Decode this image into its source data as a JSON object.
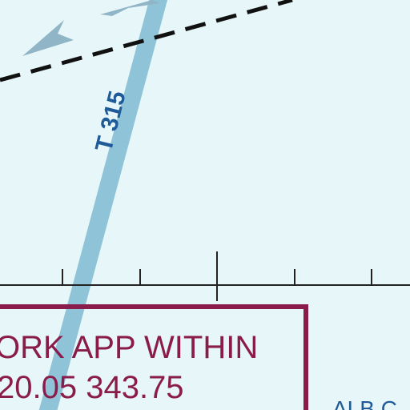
{
  "route": {
    "label": "T 315"
  },
  "frequency_box": {
    "line1": "ORK APP WITHIN",
    "line2": "20.05 343.75"
  },
  "corner_label": "ALB C"
}
